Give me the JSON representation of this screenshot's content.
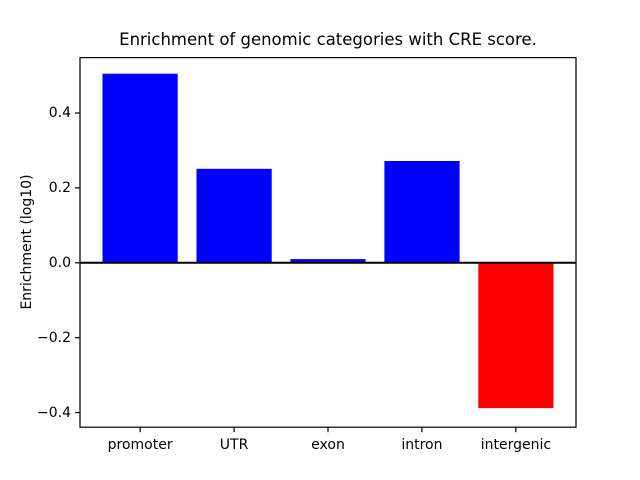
{
  "title": "Enrichment of genomic categories with CRE score.",
  "chart_data": {
    "type": "bar",
    "title": "Enrichment of genomic categories with CRE score.",
    "xlabel": "",
    "ylabel": "Enrichment (log10)",
    "categories": [
      "promoter",
      "UTR",
      "exon",
      "intron",
      "intergenic"
    ],
    "values": [
      0.505,
      0.251,
      0.01,
      0.272,
      -0.388
    ],
    "bar_colors": [
      "#0000ff",
      "#0000ff",
      "#0000ff",
      "#0000ff",
      "#ff0000"
    ],
    "positive_color": "#0000ff",
    "negative_color": "#ff0000",
    "bar_width": 0.8,
    "ylim": [
      -0.439,
      0.548
    ],
    "xlim": [
      -0.64,
      4.64
    ],
    "yticks": [
      {
        "value": -0.4,
        "label": "−0.4"
      },
      {
        "value": -0.2,
        "label": "−0.2"
      },
      {
        "value": 0.0,
        "label": "0.0"
      },
      {
        "value": 0.2,
        "label": "0.2"
      },
      {
        "value": 0.4,
        "label": "0.4"
      }
    ],
    "zero_line": true,
    "grid": false,
    "legend": null,
    "axis_color": "#000000",
    "background_color": "#ffffff"
  }
}
